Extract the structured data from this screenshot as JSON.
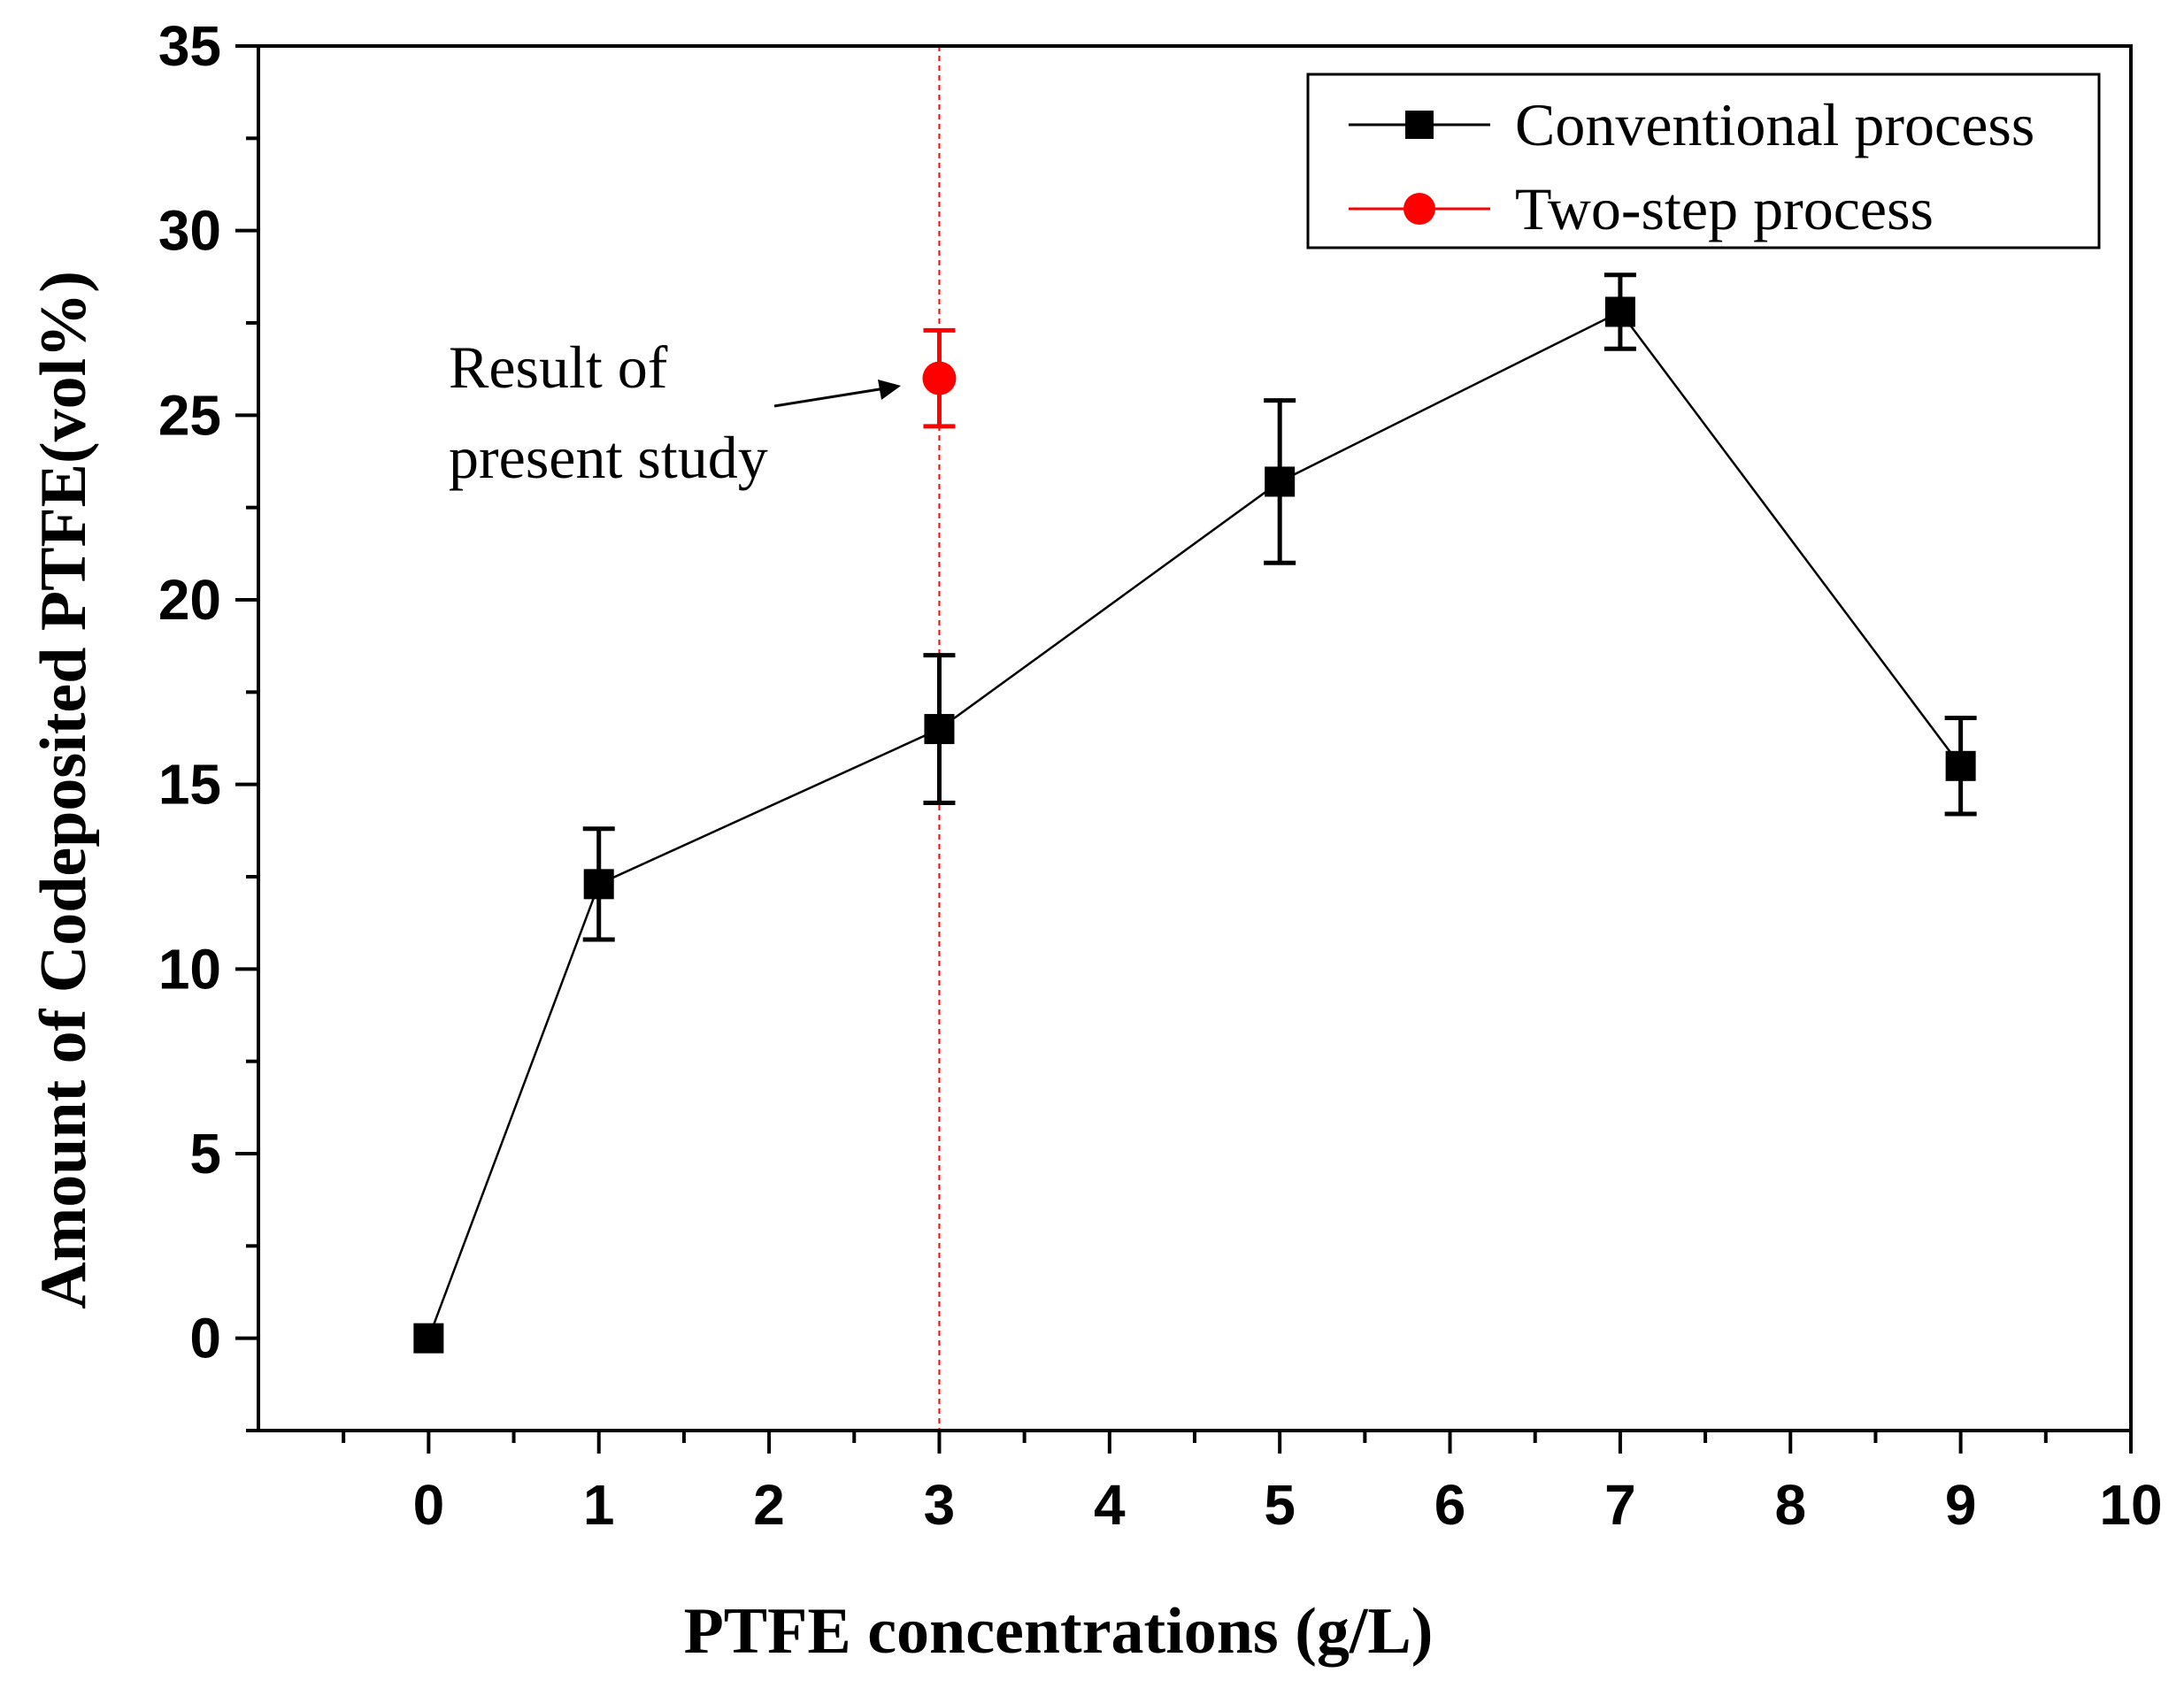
{
  "chart_data": {
    "type": "scatter",
    "title": "",
    "xlabel": "PTFE concentrations (g/L)",
    "ylabel": "Amount of Codeposited PTFE(vol%)",
    "xlim": [
      -1,
      10
    ],
    "ylim": [
      -2.5,
      35
    ],
    "xticks": [
      0,
      1,
      2,
      3,
      4,
      5,
      6,
      7,
      8,
      9,
      10
    ],
    "xtick_labels": [
      "0",
      "1",
      "2",
      "3",
      "4",
      "5",
      "6",
      "7",
      "8",
      "9",
      "10"
    ],
    "yticks": [
      0,
      5,
      10,
      15,
      20,
      25,
      30,
      35
    ],
    "ytick_labels": [
      "0",
      "5",
      "10",
      "15",
      "20",
      "25",
      "30",
      "35"
    ],
    "grid": false,
    "legend_position": "top-right",
    "series": [
      {
        "name": "Conventional process",
        "color": "#000000",
        "marker": "square",
        "line": true,
        "x": [
          0,
          1,
          3,
          5,
          7,
          9
        ],
        "y": [
          0,
          12.3,
          16.5,
          23.2,
          27.8,
          15.5
        ],
        "err": [
          0,
          1.5,
          2.0,
          2.2,
          1.0,
          1.3
        ]
      },
      {
        "name": "Two-step process",
        "color": "#ff0000",
        "marker": "circle",
        "line": false,
        "x": [
          3
        ],
        "y": [
          26.0
        ],
        "err": [
          1.3
        ]
      }
    ],
    "reference_line": {
      "x": 3,
      "color": "#ff0000",
      "style": "dashed"
    },
    "annotation": {
      "lines": [
        "Result of",
        "present study"
      ],
      "points_to": {
        "x": 3,
        "y": 26.0
      }
    }
  }
}
